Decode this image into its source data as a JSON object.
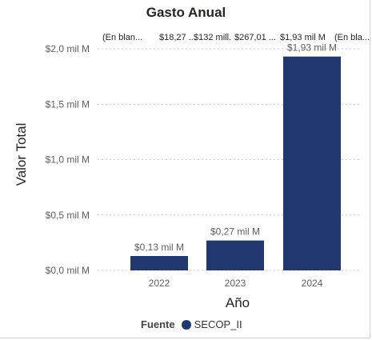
{
  "chart_data": {
    "type": "bar",
    "title": "Gasto Anual",
    "xlabel": "Año",
    "ylabel": "Valor Total",
    "categories": [
      "2022",
      "2023",
      "2024"
    ],
    "series": [
      {
        "name": "SECOP_II",
        "values": [
          0.13,
          0.27,
          1.93
        ]
      }
    ],
    "data_labels": [
      "$0,13 mil M",
      "$0,27 mil M",
      "$1,93 mil M"
    ],
    "yticks": [
      {
        "value": 0,
        "label": "$0,0 mil M"
      },
      {
        "value": 0.5,
        "label": "$0,5 mil M"
      },
      {
        "value": 1.0,
        "label": "$1,0 mil M"
      },
      {
        "value": 1.5,
        "label": "$1,5 mil M"
      },
      {
        "value": 2.0,
        "label": "$2,0 mil M"
      }
    ],
    "ylim": [
      0,
      2.0
    ],
    "grid": true,
    "overflow_labels": [
      "(En blan...",
      "$18,27 ...",
      "$132 mill.",
      "$267,01 ...",
      "$1,93 mil M",
      "(En bla..."
    ],
    "legend": {
      "title": "Fuente",
      "entries": [
        "SECOP_II"
      ],
      "position": "bottom"
    },
    "colors": {
      "bar": "#21386e",
      "grid": "#c8c8c8"
    }
  }
}
